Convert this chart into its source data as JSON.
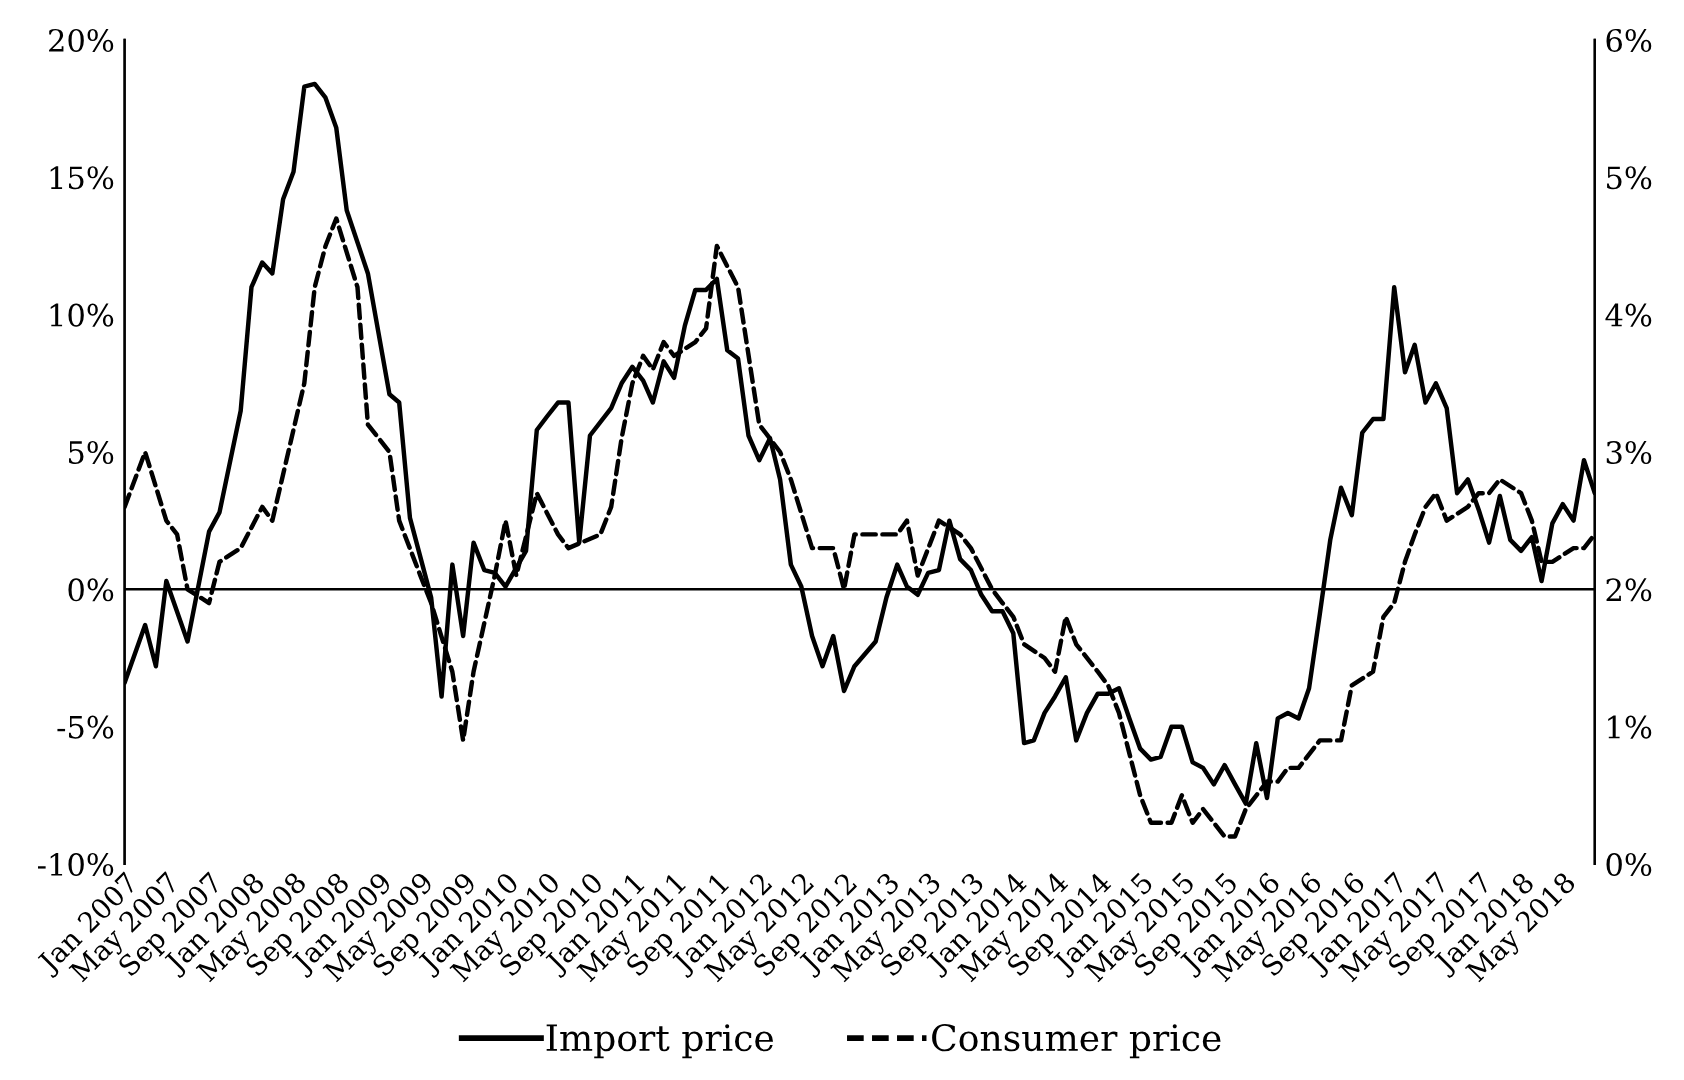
{
  "chart_data": {
    "type": "line",
    "xlim": [
      "2007-01",
      "2018-08"
    ],
    "xticks": [
      {
        "value": "2007-01",
        "label": "Jan 2007"
      },
      {
        "value": "2007-05",
        "label": "May 2007"
      },
      {
        "value": "2007-09",
        "label": "Sep 2007"
      },
      {
        "value": "2008-01",
        "label": "Jan 2008"
      },
      {
        "value": "2008-05",
        "label": "May 2008"
      },
      {
        "value": "2008-09",
        "label": "Sep 2008"
      },
      {
        "value": "2009-01",
        "label": "Jan 2009"
      },
      {
        "value": "2009-05",
        "label": "May 2009"
      },
      {
        "value": "2009-09",
        "label": "Sep 2009"
      },
      {
        "value": "2010-01",
        "label": "Jan 2010"
      },
      {
        "value": "2010-05",
        "label": "May 2010"
      },
      {
        "value": "2010-09",
        "label": "Sep 2010"
      },
      {
        "value": "2011-01",
        "label": "Jan 2011"
      },
      {
        "value": "2011-05",
        "label": "May 2011"
      },
      {
        "value": "2011-09",
        "label": "Sep 2011"
      },
      {
        "value": "2012-01",
        "label": "Jan 2012"
      },
      {
        "value": "2012-05",
        "label": "May 2012"
      },
      {
        "value": "2012-09",
        "label": "Sep 2012"
      },
      {
        "value": "2013-01",
        "label": "Jan 2013"
      },
      {
        "value": "2013-05",
        "label": "May 2013"
      },
      {
        "value": "2013-09",
        "label": "Sep 2013"
      },
      {
        "value": "2014-01",
        "label": "Jan 2014"
      },
      {
        "value": "2014-05",
        "label": "May 2014"
      },
      {
        "value": "2014-09",
        "label": "Sep 2014"
      },
      {
        "value": "2015-01",
        "label": "Jan 2015"
      },
      {
        "value": "2015-05",
        "label": "May 2015"
      },
      {
        "value": "2015-09",
        "label": "Sep 2015"
      },
      {
        "value": "2016-01",
        "label": "Jan 2016"
      },
      {
        "value": "2016-05",
        "label": "May 2016"
      },
      {
        "value": "2016-09",
        "label": "Sep 2016"
      },
      {
        "value": "2017-01",
        "label": "Jan 2017"
      },
      {
        "value": "2017-05",
        "label": "May 2017"
      },
      {
        "value": "2017-09",
        "label": "Sep 2017"
      },
      {
        "value": "2018-01",
        "label": "Jan 2018"
      },
      {
        "value": "2018-05",
        "label": "May 2018"
      }
    ],
    "ylim": [
      -10,
      20
    ],
    "yticks": [
      {
        "value": -10,
        "label": "-10%"
      },
      {
        "value": -5,
        "label": "-5%"
      },
      {
        "value": 0,
        "label": "0%"
      },
      {
        "value": 5,
        "label": "5%"
      },
      {
        "value": 10,
        "label": "10%"
      },
      {
        "value": 15,
        "label": "15%"
      },
      {
        "value": 20,
        "label": "20%"
      }
    ],
    "y2lim": [
      0,
      6
    ],
    "y2ticks": [
      {
        "value": 0,
        "label": "0%"
      },
      {
        "value": 1,
        "label": "1%"
      },
      {
        "value": 2,
        "label": "2%"
      },
      {
        "value": 3,
        "label": "3%"
      },
      {
        "value": 4,
        "label": "4%"
      },
      {
        "value": 5,
        "label": "5%"
      },
      {
        "value": 6,
        "label": "6%"
      }
    ],
    "grid": false,
    "ref_lines": [
      {
        "axis": "y",
        "value": 0,
        "color": "#000000",
        "line_style": "solid"
      }
    ],
    "legend": "bottom",
    "marker": "none",
    "series": [
      {
        "name": "Import price",
        "color": "#000000",
        "line_style": "solid",
        "x": [
          "2007-01",
          "2007-03",
          "2007-04",
          "2007-05",
          "2007-07",
          "2007-09",
          "2007-10",
          "2007-12",
          "2008-01",
          "2008-02",
          "2008-03",
          "2008-04",
          "2008-05",
          "2008-06",
          "2008-07",
          "2008-08",
          "2008-09",
          "2008-10",
          "2008-12",
          "2009-01",
          "2009-02",
          "2009-03",
          "2009-04",
          "2009-06",
          "2009-07",
          "2009-08",
          "2009-09",
          "2009-10",
          "2009-11",
          "2009-12",
          "2010-01",
          "2010-03",
          "2010-04",
          "2010-05",
          "2010-06",
          "2010-07",
          "2010-08",
          "2010-09",
          "2010-11",
          "2010-12",
          "2011-01",
          "2011-02",
          "2011-03",
          "2011-04",
          "2011-05",
          "2011-06",
          "2011-07",
          "2011-08",
          "2011-09",
          "2011-10",
          "2011-11",
          "2011-12",
          "2012-01",
          "2012-02",
          "2012-03",
          "2012-04",
          "2012-05",
          "2012-06",
          "2012-07",
          "2012-08",
          "2012-09",
          "2012-10",
          "2012-12",
          "2013-01",
          "2013-02",
          "2013-03",
          "2013-04",
          "2013-05",
          "2013-06",
          "2013-07",
          "2013-08",
          "2013-09",
          "2013-10",
          "2013-11",
          "2013-12",
          "2014-01",
          "2014-02",
          "2014-03",
          "2014-04",
          "2014-05",
          "2014-06",
          "2014-07",
          "2014-08",
          "2014-09",
          "2014-10",
          "2014-11",
          "2014-12",
          "2015-01",
          "2015-02",
          "2015-03",
          "2015-04",
          "2015-05",
          "2015-06",
          "2015-07",
          "2015-08",
          "2015-09",
          "2015-10",
          "2015-11",
          "2015-12",
          "2016-01",
          "2016-02",
          "2016-03",
          "2016-04",
          "2016-05",
          "2016-06",
          "2016-07",
          "2016-08",
          "2016-09",
          "2016-10",
          "2016-11",
          "2016-12",
          "2017-01",
          "2017-02",
          "2017-03",
          "2017-04",
          "2017-05",
          "2017-06",
          "2017-07",
          "2017-08",
          "2017-09",
          "2017-10",
          "2017-11",
          "2017-12",
          "2018-01",
          "2018-02",
          "2018-03",
          "2018-04",
          "2018-05",
          "2018-06",
          "2018-07",
          "2018-08"
        ],
        "values": [
          -3.4,
          -1.3,
          -2.8,
          0.3,
          -1.9,
          2.1,
          2.8,
          6.5,
          11.0,
          11.9,
          11.5,
          14.2,
          15.2,
          18.3,
          18.4,
          17.9,
          16.8,
          13.8,
          11.5,
          9.3,
          7.1,
          6.8,
          2.6,
          -0.3,
          -3.9,
          0.9,
          -1.7,
          1.7,
          0.7,
          0.6,
          0.1,
          1.4,
          5.8,
          6.3,
          6.8,
          6.8,
          1.7,
          5.6,
          6.6,
          7.5,
          8.1,
          7.6,
          6.8,
          8.3,
          7.7,
          9.6,
          10.9,
          10.9,
          11.3,
          8.7,
          8.4,
          5.6,
          4.7,
          5.5,
          4.0,
          0.9,
          0.1,
          -1.7,
          -2.8,
          -1.7,
          -3.7,
          -2.8,
          -1.9,
          -0.3,
          0.9,
          0.1,
          -0.2,
          0.6,
          0.7,
          2.5,
          1.1,
          0.7,
          -0.2,
          -0.8,
          -0.8,
          -1.6,
          -5.6,
          -5.5,
          -4.5,
          -3.9,
          -3.2,
          -5.5,
          -4.5,
          -3.8,
          -3.8,
          -3.6,
          -4.7,
          -5.8,
          -6.2,
          -6.1,
          -5.0,
          -5.0,
          -6.3,
          -6.5,
          -7.1,
          -6.4,
          -7.1,
          -7.8,
          -5.6,
          -7.6,
          -4.7,
          -4.5,
          -4.7,
          -3.6,
          -0.9,
          1.8,
          3.7,
          2.7,
          5.7,
          6.2,
          6.2,
          11.0,
          7.9,
          8.9,
          6.8,
          7.5,
          6.6,
          3.5,
          4.0,
          2.9,
          1.7,
          3.4,
          1.8,
          1.4,
          1.9,
          0.3,
          2.4,
          3.1,
          2.5,
          4.7,
          3.5
        ]
      },
      {
        "name": "Consumer price",
        "color": "#000000",
        "line_style": "dashed",
        "axis": "y2",
        "x": [
          "2007-01",
          "2007-03",
          "2007-05",
          "2007-06",
          "2007-07",
          "2007-09",
          "2007-10",
          "2007-12",
          "2008-02",
          "2008-03",
          "2008-06",
          "2008-07",
          "2008-08",
          "2008-09",
          "2008-11",
          "2008-12",
          "2009-01",
          "2009-02",
          "2009-03",
          "2009-05",
          "2009-06",
          "2009-08",
          "2009-09",
          "2009-10",
          "2009-12",
          "2010-01",
          "2010-02",
          "2010-04",
          "2010-06",
          "2010-07",
          "2010-10",
          "2010-11",
          "2010-12",
          "2011-01",
          "2011-02",
          "2011-03",
          "2011-04",
          "2011-05",
          "2011-07",
          "2011-08",
          "2011-09",
          "2011-11",
          "2012-01",
          "2012-03",
          "2012-04",
          "2012-06",
          "2012-08",
          "2012-09",
          "2012-10",
          "2012-12",
          "2013-02",
          "2013-03",
          "2013-04",
          "2013-06",
          "2013-08",
          "2013-09",
          "2013-11",
          "2013-12",
          "2014-01",
          "2014-02",
          "2014-04",
          "2014-05",
          "2014-06",
          "2014-07",
          "2014-09",
          "2014-10",
          "2014-11",
          "2015-01",
          "2015-02",
          "2015-04",
          "2015-05",
          "2015-06",
          "2015-07",
          "2015-08",
          "2015-09",
          "2015-10",
          "2015-11",
          "2016-01",
          "2016-02",
          "2016-03",
          "2016-04",
          "2016-06",
          "2016-08",
          "2016-09",
          "2016-11",
          "2016-12",
          "2017-01",
          "2017-02",
          "2017-03",
          "2017-04",
          "2017-05",
          "2017-06",
          "2017-08",
          "2017-09",
          "2017-10",
          "2017-11",
          "2018-01",
          "2018-02",
          "2018-03",
          "2018-04",
          "2018-06",
          "2018-07",
          "2018-08"
        ],
        "values": [
          2.6,
          3.0,
          2.5,
          2.4,
          2.0,
          1.9,
          2.2,
          2.3,
          2.6,
          2.5,
          3.5,
          4.2,
          4.5,
          4.7,
          4.2,
          3.2,
          3.1,
          3.0,
          2.5,
          2.1,
          1.9,
          1.4,
          0.9,
          1.4,
          2.1,
          2.5,
          2.1,
          2.7,
          2.4,
          2.3,
          2.4,
          2.6,
          3.1,
          3.5,
          3.7,
          3.6,
          3.8,
          3.7,
          3.8,
          3.9,
          4.5,
          4.2,
          3.2,
          3.0,
          2.8,
          2.3,
          2.3,
          2.0,
          2.4,
          2.4,
          2.4,
          2.5,
          2.1,
          2.5,
          2.4,
          2.3,
          2.0,
          1.9,
          1.8,
          1.6,
          1.5,
          1.4,
          1.8,
          1.6,
          1.4,
          1.3,
          1.1,
          0.5,
          0.3,
          0.3,
          0.5,
          0.3,
          0.4,
          0.3,
          0.2,
          0.2,
          0.4,
          0.6,
          0.6,
          0.7,
          0.7,
          0.9,
          0.9,
          1.3,
          1.4,
          1.8,
          1.9,
          2.2,
          2.4,
          2.6,
          2.7,
          2.5,
          2.6,
          2.7,
          2.7,
          2.8,
          2.7,
          2.5,
          2.2,
          2.2,
          2.3,
          2.3,
          2.4
        ]
      }
    ]
  }
}
